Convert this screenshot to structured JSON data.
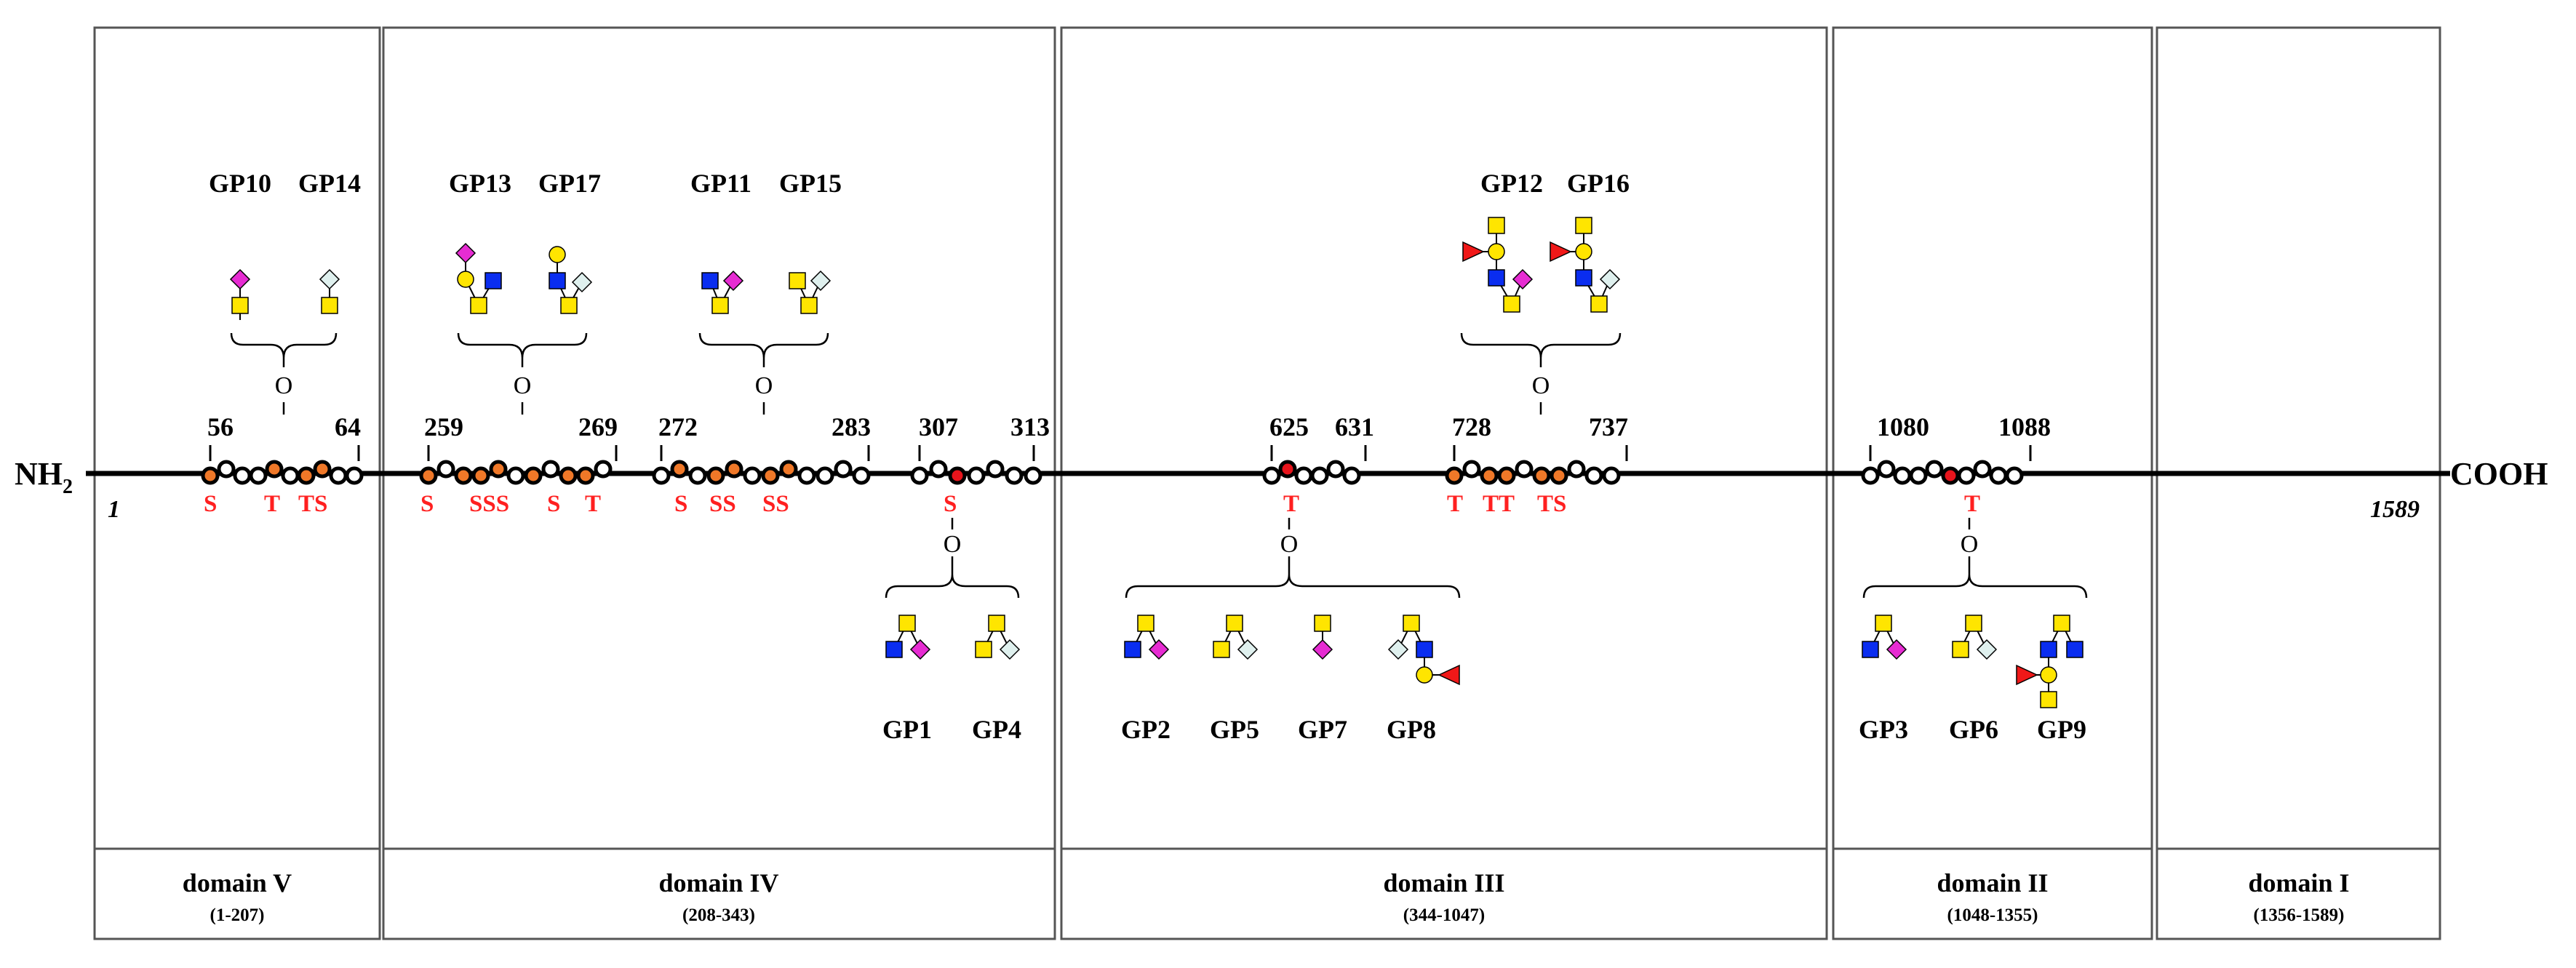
{
  "protein": {
    "n_term_label": "NH",
    "n_term_subscript": "2",
    "c_term_label": "COOH",
    "start_residue": "1",
    "end_residue": "1589"
  },
  "domains": [
    {
      "name": "domain V",
      "range": "(1-207)"
    },
    {
      "name": "domain IV",
      "range": "(208-343)"
    },
    {
      "name": "domain III",
      "range": "(344-1047)"
    },
    {
      "name": "domain II",
      "range": "(1048-1355)"
    },
    {
      "name": "domain I",
      "range": "(1356-1589)"
    }
  ],
  "positions": [
    "56",
    "64",
    "259",
    "269",
    "272",
    "283",
    "307",
    "313",
    "625",
    "631",
    "728",
    "737",
    "1080",
    "1088"
  ],
  "site_residues": [
    "S",
    "T",
    "TS",
    "S",
    "SSS",
    "S",
    "T",
    "S",
    "SS",
    "SS",
    "S",
    "T",
    "T",
    "TT",
    "TS",
    "T"
  ],
  "linkage_label": "O",
  "glycopeptides": [
    "GP10",
    "GP14",
    "GP13",
    "GP17",
    "GP11",
    "GP15",
    "GP1",
    "GP4",
    "GP2",
    "GP5",
    "GP7",
    "GP8",
    "GP12",
    "GP16",
    "GP3",
    "GP6",
    "GP9"
  ],
  "legend_colors": {
    "site_orange": "#f07828",
    "site_red": "#e8141c",
    "galnac_yellow": "#ffe500",
    "glcnac_blue": "#0a2df0",
    "neu5ac_magenta": "#e62cd2",
    "neu5gc_light": "#dff0ee",
    "fuc_red": "#f01818",
    "residue_label_red": "#ff2020"
  },
  "icons": [
    "galnac-square-icon",
    "gal-circle-icon",
    "glcnac-square-icon",
    "neu5ac-diamond-icon",
    "kdn-diamond-icon",
    "fucose-triangle-icon"
  ]
}
